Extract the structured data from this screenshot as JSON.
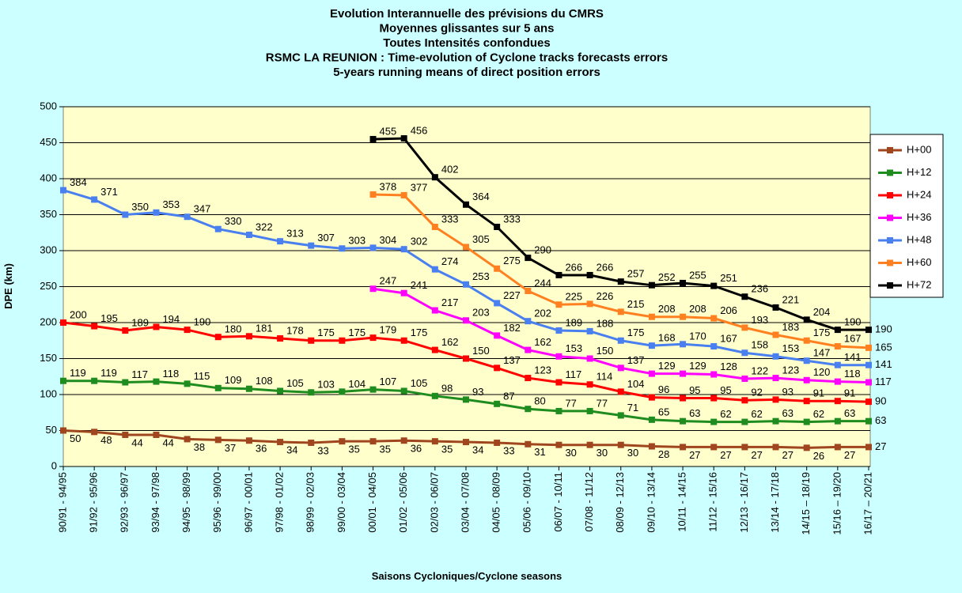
{
  "chart_data": {
    "type": "line",
    "title": [
      "Evolution Interannuelle des prévisions du CMRS",
      "Moyennes glissantes sur 5 ans",
      "Toutes Intensités confondues",
      "RSMC LA REUNION : Time-evolution of Cyclone tracks forecasts errors",
      "5-years running means of direct position errors"
    ],
    "x_label": "Saisons Cycloniques/Cyclone seasons",
    "y_label": "DPE (km)",
    "categories": [
      "90/91 - 94/95",
      "91/92 - 95/96",
      "92/93 - 96/97",
      "93/94 - 97/98",
      "94/95 - 98/99",
      "95/96 - 99/00",
      "96/97 - 00/01",
      "97/98 - 01/02",
      "98/99 - 02/03",
      "99/00 - 03/04",
      "00/01 - 04/05",
      "01/02 - 05/06",
      "02/03 - 06/07",
      "03/04 - 07/08",
      "04/05 - 08/09",
      "05/06 - 09/10",
      "06/07 - 10/11",
      "07/08 - 11/12",
      "08/09 - 12/13",
      "09/10 - 13/14",
      "10/11 - 14/15",
      "11/12 - 15/16",
      "12/13 - 16/17",
      "13/14 - 17/18",
      "14/15 – 18/19",
      "15/16 – 19/20",
      "16/17 – 20/21"
    ],
    "series": [
      {
        "name": "H+00",
        "color": "#a0461e",
        "values": [
          50,
          48,
          44,
          44,
          38,
          37,
          36,
          34,
          33,
          35,
          35,
          36,
          35,
          34,
          33,
          31,
          30,
          30,
          30,
          28,
          27,
          27,
          27,
          27,
          26,
          27,
          27
        ]
      },
      {
        "name": "H+12",
        "color": "#1e8c1e",
        "values": [
          119,
          119,
          117,
          118,
          115,
          109,
          108,
          105,
          103,
          104,
          107,
          105,
          98,
          93,
          87,
          80,
          77,
          77,
          71,
          65,
          63,
          62,
          62,
          63,
          62,
          63,
          63
        ]
      },
      {
        "name": "H+24",
        "color": "#ff0000",
        "values": [
          200,
          195,
          189,
          194,
          190,
          180,
          181,
          178,
          175,
          175,
          179,
          175,
          162,
          150,
          137,
          123,
          117,
          114,
          104,
          96,
          95,
          95,
          92,
          93,
          91,
          91,
          90
        ]
      },
      {
        "name": "H+36",
        "color": "#ff00ff",
        "values": [
          null,
          null,
          null,
          null,
          null,
          null,
          null,
          null,
          null,
          null,
          247,
          241,
          217,
          203,
          182,
          162,
          153,
          150,
          137,
          129,
          129,
          128,
          122,
          123,
          120,
          118,
          117
        ]
      },
      {
        "name": "H+48",
        "color": "#4a7ff0",
        "values": [
          384,
          371,
          350,
          353,
          347,
          330,
          322,
          313,
          307,
          303,
          304,
          302,
          274,
          253,
          227,
          202,
          189,
          188,
          175,
          168,
          170,
          167,
          158,
          153,
          147,
          141,
          141
        ]
      },
      {
        "name": "H+60",
        "color": "#ff8020",
        "values": [
          null,
          null,
          null,
          null,
          null,
          null,
          null,
          null,
          null,
          null,
          378,
          377,
          333,
          305,
          275,
          244,
          225,
          226,
          215,
          208,
          208,
          206,
          193,
          183,
          175,
          167,
          165
        ]
      },
      {
        "name": "H+72",
        "color": "#000000",
        "values": [
          null,
          null,
          null,
          null,
          null,
          null,
          null,
          null,
          null,
          null,
          455,
          456,
          402,
          364,
          333,
          290,
          266,
          266,
          257,
          252,
          255,
          251,
          236,
          221,
          204,
          190,
          190
        ]
      }
    ],
    "ylim": [
      0,
      500
    ],
    "yticks": [
      0,
      50,
      100,
      150,
      200,
      250,
      300,
      350,
      400,
      450,
      500
    ],
    "grid": true,
    "legend": "right"
  }
}
